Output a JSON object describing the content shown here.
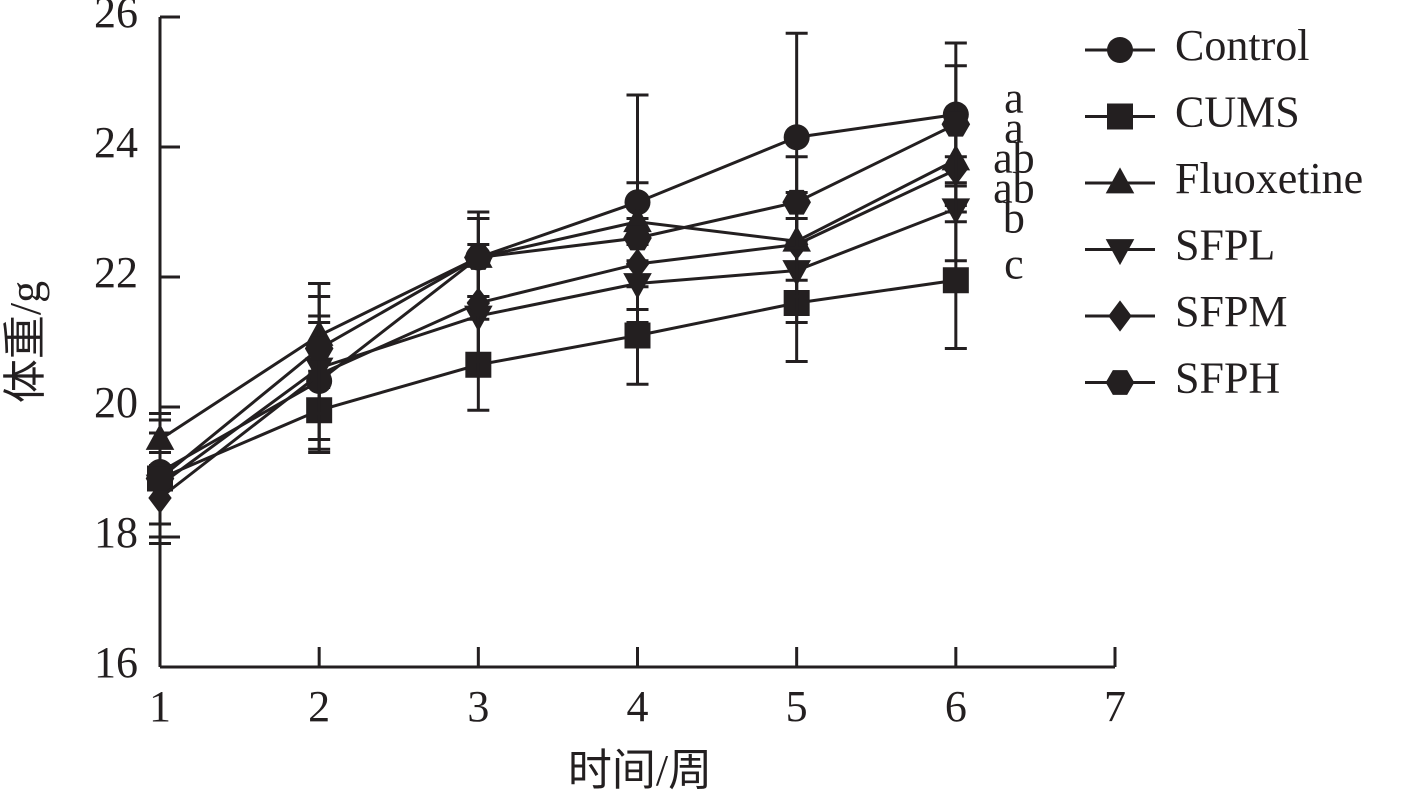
{
  "chart_data": {
    "type": "line",
    "x_label": "时间/周",
    "y_label": "体重/g",
    "x": [
      1,
      2,
      3,
      4,
      5,
      6
    ],
    "xlim": [
      1,
      7
    ],
    "xticks": [
      1,
      2,
      3,
      4,
      5,
      6,
      7
    ],
    "ylim": [
      16,
      26
    ],
    "yticks": [
      16,
      18,
      20,
      22,
      24,
      26
    ],
    "legend": "right",
    "series": [
      {
        "name": "Control",
        "color": "#231f20",
        "marker": "circle",
        "values": [
          19.0,
          20.4,
          22.3,
          23.15,
          24.15,
          24.5
        ],
        "errors": [
          0.8,
          0.9,
          0.7,
          1.65,
          1.6,
          1.1
        ],
        "significance": "a"
      },
      {
        "name": "CUMS",
        "color": "#231f20",
        "marker": "square",
        "values": [
          18.9,
          19.95,
          20.65,
          21.1,
          21.6,
          21.95
        ],
        "errors": [
          0.9,
          0.6,
          0.7,
          0.75,
          0.9,
          1.05
        ],
        "significance": "c"
      },
      {
        "name": "Fluoxetine",
        "color": "#231f20",
        "marker": "triangle",
        "values": [
          19.5,
          21.1,
          22.3,
          22.85,
          22.55,
          23.8
        ],
        "errors": [
          0.4,
          0.8,
          0.6,
          0.6,
          0.6,
          0.7
        ],
        "significance": "ab"
      },
      {
        "name": "SFPL",
        "color": "#231f20",
        "marker": "triangle-down",
        "values": [
          18.8,
          20.6,
          21.4,
          21.9,
          22.1,
          23.05
        ],
        "errors": [
          0.6,
          0.8,
          0.9,
          0.6,
          0.8,
          0.8
        ],
        "significance": "b"
      },
      {
        "name": "SFPM",
        "color": "#231f20",
        "marker": "diamond",
        "values": [
          18.6,
          20.5,
          21.6,
          22.2,
          22.5,
          23.65
        ],
        "errors": [
          0.7,
          1.2,
          0.9,
          0.7,
          0.8,
          0.8
        ],
        "significance": "ab"
      },
      {
        "name": "SFPH",
        "color": "#231f20",
        "marker": "hexagon",
        "values": [
          18.9,
          20.9,
          22.3,
          22.6,
          23.15,
          24.35
        ],
        "errors": [
          0.7,
          1.0,
          0.6,
          0.6,
          0.7,
          0.9
        ],
        "significance": "a"
      }
    ]
  }
}
